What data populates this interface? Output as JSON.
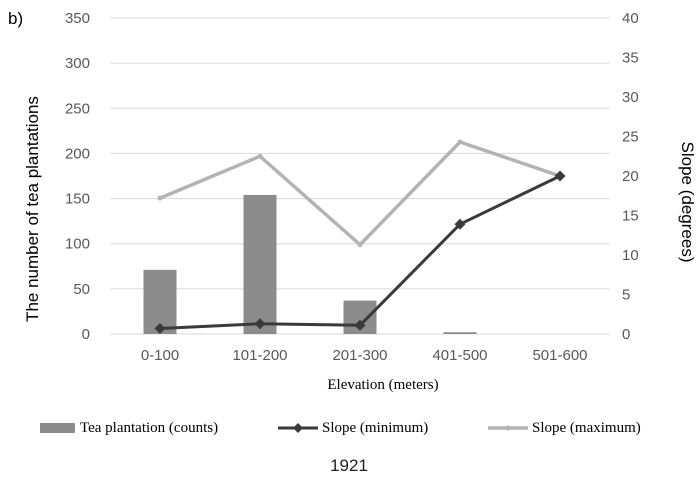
{
  "panel_label": "b)",
  "caption": "1921",
  "colors": {
    "bar": "#8c8c8c",
    "slope_min": "#3a3a3a",
    "slope_max": "#b3b3b3",
    "grid": "#d9d9d9",
    "tick": "#595959"
  },
  "chart_data": {
    "type": "bar",
    "categories": [
      "0-100",
      "101-200",
      "201-300",
      "401-500",
      "501-600"
    ],
    "xlabel": "Elevation (meters)",
    "ylabel": "The number of tea plantations",
    "ylabel_right": "Slope (degrees)",
    "ylim": [
      0,
      350
    ],
    "ylim_right": [
      0,
      40
    ],
    "yticks": [
      "0",
      "50",
      "100",
      "150",
      "200",
      "250",
      "300",
      "350"
    ],
    "yticks_right": [
      "0",
      "5",
      "10",
      "15",
      "20",
      "25",
      "30",
      "35",
      "40"
    ],
    "grid": true,
    "legend_position": "bottom",
    "series": [
      {
        "name": "Tea plantation (counts)",
        "type": "bar",
        "axis": "left",
        "values": [
          71,
          154,
          37,
          2,
          0
        ]
      },
      {
        "name": "Slope (minimum)",
        "type": "line",
        "axis": "right",
        "marker": "diamond",
        "values": [
          0.7,
          1.3,
          1.1,
          13.9,
          20.0
        ]
      },
      {
        "name": "Slope (maximum)",
        "type": "line",
        "axis": "right",
        "marker": "circle",
        "values": [
          17.2,
          22.5,
          11.3,
          24.3,
          20.0
        ]
      }
    ]
  }
}
